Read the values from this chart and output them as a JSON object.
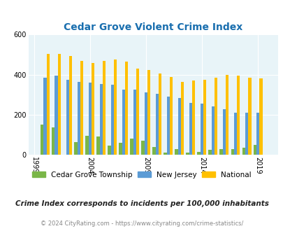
{
  "title": "Cedar Grove Violent Crime Index",
  "years": [
    1999,
    2000,
    2001,
    2002,
    2003,
    2004,
    2005,
    2006,
    2007,
    2008,
    2009,
    2010,
    2011,
    2012,
    2013,
    2014,
    2015,
    2016,
    2017,
    2018,
    2019,
    2020
  ],
  "cedar_grove": [
    0,
    150,
    135,
    0,
    65,
    95,
    90,
    45,
    60,
    80,
    70,
    40,
    10,
    30,
    10,
    15,
    25,
    30,
    30,
    35,
    50,
    0
  ],
  "new_jersey": [
    0,
    385,
    395,
    375,
    365,
    360,
    355,
    350,
    325,
    325,
    310,
    305,
    290,
    285,
    260,
    255,
    240,
    228,
    210,
    210,
    210,
    0
  ],
  "national": [
    0,
    505,
    505,
    495,
    470,
    460,
    470,
    475,
    465,
    430,
    425,
    405,
    390,
    365,
    370,
    375,
    385,
    400,
    395,
    385,
    380,
    0
  ],
  "cedar_grove_color": "#7ab648",
  "new_jersey_color": "#5b9bd5",
  "national_color": "#ffc000",
  "plot_bg_color": "#e8f4f8",
  "ylim": [
    0,
    600
  ],
  "yticks": [
    0,
    200,
    400,
    600
  ],
  "xtick_labels": [
    "1999",
    "2004",
    "2009",
    "2014",
    "2019"
  ],
  "xtick_positions": [
    1999,
    2004,
    2009,
    2014,
    2019
  ],
  "legend_labels": [
    "Cedar Grove Township",
    "New Jersey",
    "National"
  ],
  "subtitle": "Crime Index corresponds to incidents per 100,000 inhabitants",
  "footer": "© 2024 CityRating.com - https://www.cityrating.com/crime-statistics/"
}
